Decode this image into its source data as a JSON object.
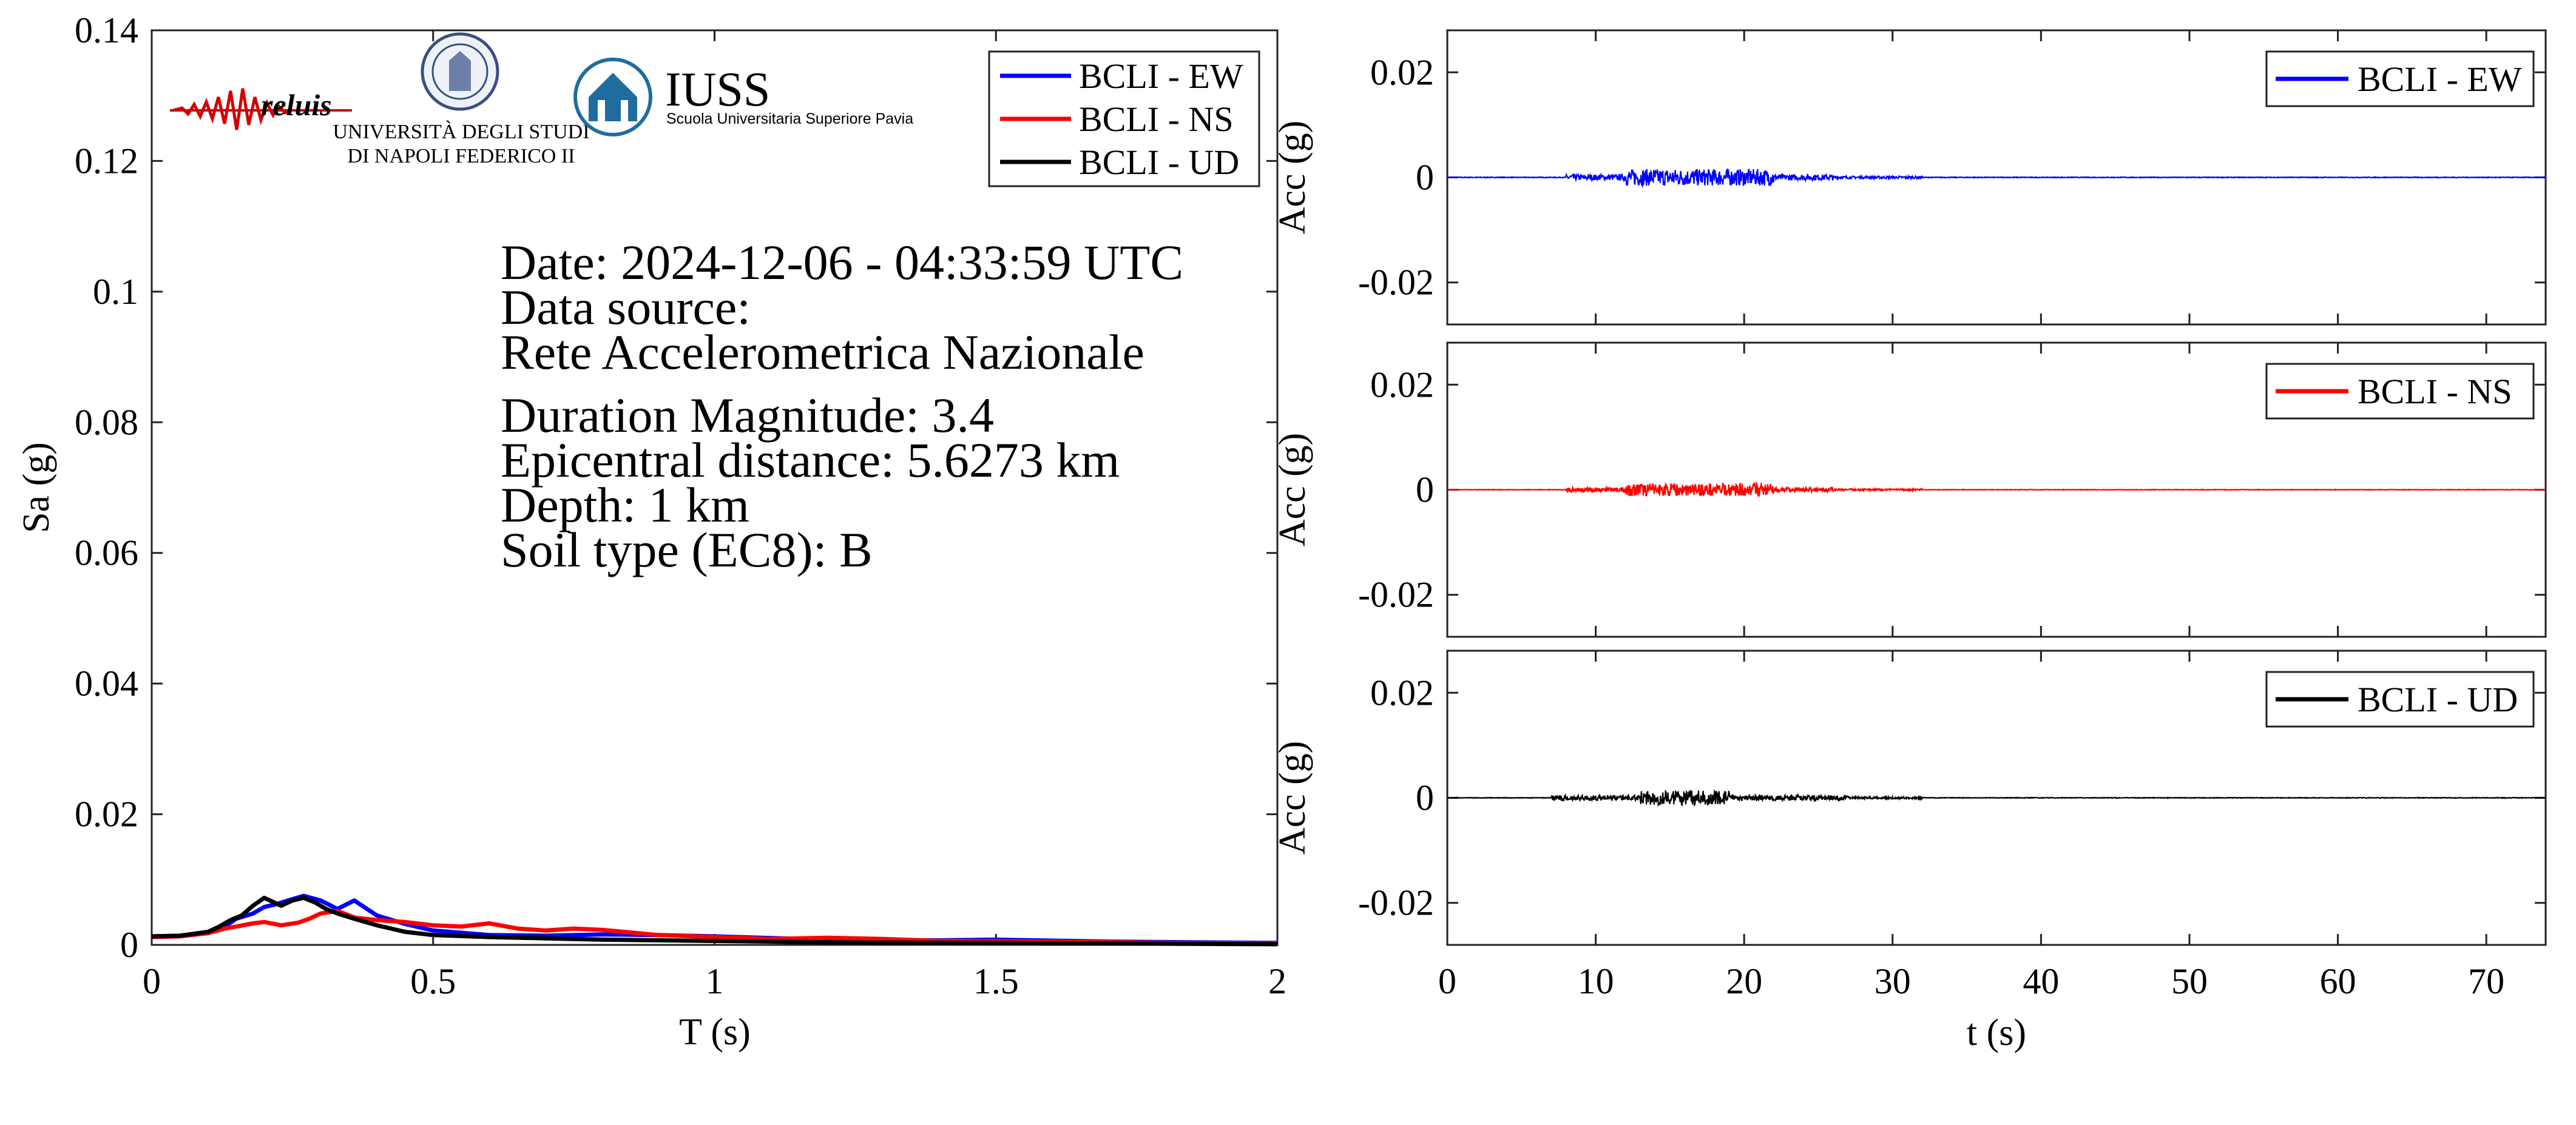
{
  "chart_data": [
    {
      "type": "line",
      "xlabel": "T (s)",
      "ylabel": "Sa (g)",
      "xlim": [
        0,
        2
      ],
      "ylim": [
        0,
        0.14
      ],
      "xticks": [
        "0",
        "0.5",
        "1",
        "1.5",
        "2"
      ],
      "yticks": [
        "0",
        "0.02",
        "0.04",
        "0.06",
        "0.08",
        "0.1",
        "0.12",
        "0.14"
      ],
      "legend_position": "top-right",
      "series": [
        {
          "name": "BCLI - EW",
          "color": "#0000ff",
          "x": [
            0,
            0.05,
            0.1,
            0.13,
            0.15,
            0.18,
            0.2,
            0.22,
            0.25,
            0.27,
            0.3,
            0.33,
            0.36,
            0.4,
            0.45,
            0.5,
            0.6,
            0.7,
            0.8,
            0.9,
            1.0,
            1.2,
            1.4,
            1.5,
            1.7,
            2.0
          ],
          "y": [
            0.0013,
            0.0014,
            0.0018,
            0.0028,
            0.004,
            0.0048,
            0.0058,
            0.0062,
            0.007,
            0.0075,
            0.0068,
            0.0055,
            0.0068,
            0.0045,
            0.0032,
            0.0022,
            0.0015,
            0.0014,
            0.0016,
            0.0015,
            0.0013,
            0.0008,
            0.0007,
            0.0008,
            0.0005,
            0.0003
          ]
        },
        {
          "name": "BCLI - NS",
          "color": "#ff0000",
          "x": [
            0,
            0.05,
            0.1,
            0.13,
            0.15,
            0.18,
            0.2,
            0.23,
            0.26,
            0.28,
            0.3,
            0.33,
            0.36,
            0.4,
            0.45,
            0.5,
            0.55,
            0.6,
            0.65,
            0.7,
            0.75,
            0.8,
            0.9,
            1.0,
            1.1,
            1.2,
            1.3,
            1.4,
            1.6,
            1.8,
            2.0
          ],
          "y": [
            0.0012,
            0.0013,
            0.0018,
            0.0025,
            0.0028,
            0.0033,
            0.0035,
            0.003,
            0.0034,
            0.004,
            0.0048,
            0.0052,
            0.0042,
            0.0038,
            0.0035,
            0.003,
            0.0028,
            0.0033,
            0.0025,
            0.0022,
            0.0025,
            0.0023,
            0.0015,
            0.0012,
            0.0009,
            0.0011,
            0.0009,
            0.0006,
            0.0005,
            0.0003,
            0.0002
          ]
        },
        {
          "name": "BCLI - UD",
          "color": "#000000",
          "x": [
            0,
            0.05,
            0.1,
            0.12,
            0.14,
            0.16,
            0.18,
            0.2,
            0.21,
            0.23,
            0.25,
            0.27,
            0.29,
            0.31,
            0.33,
            0.36,
            0.4,
            0.45,
            0.5,
            0.6,
            0.7,
            0.8,
            1.0,
            1.2,
            1.5,
            2.0
          ],
          "y": [
            0.0013,
            0.0014,
            0.002,
            0.0028,
            0.0038,
            0.0045,
            0.006,
            0.0072,
            0.0068,
            0.006,
            0.0068,
            0.0072,
            0.0065,
            0.0055,
            0.0048,
            0.004,
            0.003,
            0.002,
            0.0015,
            0.0012,
            0.001,
            0.0008,
            0.0006,
            0.0004,
            0.0003,
            0.0001
          ]
        }
      ],
      "annotations": [
        "Date: 2024-12-06 - 04:33:59 UTC",
        "Data source:",
        "Rete Accelerometrica Nazionale",
        "Duration Magnitude: 3.4",
        "Epicentral distance: 5.6273 km",
        "Depth: 1 km",
        "Soil type (EC8): B"
      ],
      "logos": {
        "reluis": "reluis",
        "unina_line1": "UNIVERSITÀ DEGLI STUDI",
        "unina_line2": "DI NAPOLI FEDERICO II",
        "iuss_title": "IUSS",
        "iuss_subtitle": "Scuola Universitaria Superiore Pavia"
      }
    },
    {
      "type": "line",
      "ylabel": "Acc (g)",
      "xlim": [
        0,
        74
      ],
      "ylim": [
        -0.028,
        0.028
      ],
      "yticks": [
        "0.02",
        "0",
        "-0.02"
      ],
      "legend_position": "top-right",
      "series": [
        {
          "name": "BCLI - EW",
          "color": "#0000ff",
          "peak": 0.0016,
          "active_range": [
            8,
            26
          ],
          "strong_phase": [
            12,
            22
          ]
        }
      ]
    },
    {
      "type": "line",
      "ylabel": "Acc (g)",
      "xlim": [
        0,
        74
      ],
      "ylim": [
        -0.028,
        0.028
      ],
      "yticks": [
        "0.02",
        "0",
        "-0.02"
      ],
      "legend_position": "top-right",
      "series": [
        {
          "name": "BCLI - NS",
          "color": "#ff0000",
          "peak": 0.0012,
          "active_range": [
            8,
            26
          ],
          "strong_phase": [
            12,
            22
          ]
        }
      ]
    },
    {
      "type": "line",
      "xlabel": "t (s)",
      "ylabel": "Acc (g)",
      "xlim": [
        0,
        74
      ],
      "ylim": [
        -0.028,
        0.028
      ],
      "xticks": [
        "0",
        "10",
        "20",
        "30",
        "40",
        "50",
        "60",
        "70"
      ],
      "yticks": [
        "0.02",
        "0",
        "-0.02"
      ],
      "legend_position": "top-right",
      "series": [
        {
          "name": "BCLI - UD",
          "color": "#000000",
          "peak": 0.0014,
          "active_range": [
            7,
            27
          ],
          "strong_phase": [
            13,
            19
          ]
        }
      ]
    }
  ]
}
